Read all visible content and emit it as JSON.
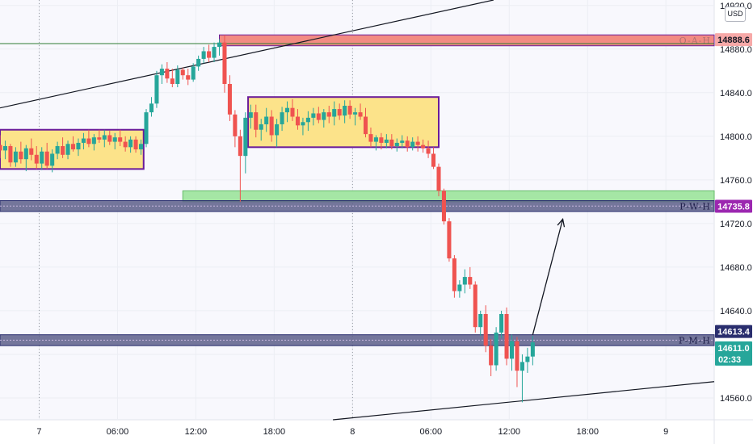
{
  "currency_label": "USD",
  "chart_data": {
    "type": "candlestick",
    "title": "",
    "ylim": [
      14540,
      14925
    ],
    "y_ticks": [
      14560,
      14600,
      14640,
      14680,
      14720,
      14760,
      14800,
      14840,
      14880,
      14920
    ],
    "y_tick_labels": [
      "14560.0",
      "14600.0",
      "14640.0",
      "14680.0",
      "14720.0",
      "14760.0",
      "14800.0",
      "14840.0",
      "14880.0",
      "14920.0"
    ],
    "x_ticks": [
      "7",
      "06:00",
      "12:00",
      "18:00",
      "8",
      "06:00",
      "12:00",
      "18:00",
      "9"
    ],
    "x_tick_hours": [
      0,
      6,
      12,
      18,
      24,
      30,
      36,
      42,
      48
    ],
    "xlim_hours": [
      -3,
      51.7
    ],
    "grid": true,
    "candles": [
      [
        -3.0,
        14792,
        14801,
        14780,
        14787
      ],
      [
        -2.6,
        14787,
        14796,
        14779,
        14791
      ],
      [
        -2.2,
        14791,
        14793,
        14772,
        14776
      ],
      [
        -1.8,
        14776,
        14790,
        14772,
        14786
      ],
      [
        -1.4,
        14786,
        14795,
        14775,
        14779
      ],
      [
        -1.0,
        14779,
        14792,
        14768,
        14789
      ],
      [
        -0.6,
        14789,
        14798,
        14778,
        14783
      ],
      [
        -0.2,
        14783,
        14791,
        14770,
        14775
      ],
      [
        0.2,
        14775,
        14790,
        14769,
        14786
      ],
      [
        0.6,
        14786,
        14794,
        14770,
        14773
      ],
      [
        1.0,
        14773,
        14788,
        14767,
        14784
      ],
      [
        1.4,
        14784,
        14795,
        14779,
        14791
      ],
      [
        1.8,
        14791,
        14799,
        14780,
        14783
      ],
      [
        2.2,
        14783,
        14796,
        14779,
        14793
      ],
      [
        2.6,
        14793,
        14800,
        14786,
        14788
      ],
      [
        3.0,
        14788,
        14798,
        14782,
        14794
      ],
      [
        3.4,
        14794,
        14803,
        14788,
        14798
      ],
      [
        3.8,
        14798,
        14806,
        14790,
        14793
      ],
      [
        4.2,
        14793,
        14802,
        14787,
        14799
      ],
      [
        4.6,
        14799,
        14806,
        14794,
        14797
      ],
      [
        5.0,
        14797,
        14806,
        14790,
        14801
      ],
      [
        5.4,
        14801,
        14805,
        14792,
        14795
      ],
      [
        5.8,
        14795,
        14803,
        14788,
        14799
      ],
      [
        6.2,
        14799,
        14806,
        14791,
        14795
      ],
      [
        6.6,
        14795,
        14800,
        14786,
        14790
      ],
      [
        7.0,
        14790,
        14800,
        14785,
        14797
      ],
      [
        7.4,
        14797,
        14800,
        14785,
        14788
      ],
      [
        7.8,
        14788,
        14797,
        14783,
        14793
      ],
      [
        8.2,
        14793,
        14825,
        14790,
        14822
      ],
      [
        8.6,
        14822,
        14836,
        14818,
        14830
      ],
      [
        9.0,
        14830,
        14860,
        14826,
        14856
      ],
      [
        9.4,
        14856,
        14866,
        14848,
        14862
      ],
      [
        9.8,
        14862,
        14868,
        14849,
        14853
      ],
      [
        10.2,
        14853,
        14862,
        14845,
        14848
      ],
      [
        10.6,
        14848,
        14865,
        14845,
        14861
      ],
      [
        11.0,
        14861,
        14863,
        14852,
        14856
      ],
      [
        11.4,
        14856,
        14862,
        14847,
        14852
      ],
      [
        11.8,
        14852,
        14867,
        14850,
        14864
      ],
      [
        12.2,
        14864,
        14874,
        14860,
        14871
      ],
      [
        12.6,
        14871,
        14882,
        14867,
        14878
      ],
      [
        13.0,
        14878,
        14884,
        14868,
        14872
      ],
      [
        13.4,
        14872,
        14886,
        14868,
        14882
      ],
      [
        13.8,
        14882,
        14889,
        14874,
        14886
      ],
      [
        14.2,
        14886,
        14893,
        14840,
        14848
      ],
      [
        14.6,
        14848,
        14856,
        14814,
        14820
      ],
      [
        15.0,
        14820,
        14824,
        14790,
        14800
      ],
      [
        15.4,
        14800,
        14806,
        14740,
        14782
      ],
      [
        15.8,
        14782,
        14822,
        14766,
        14817
      ],
      [
        16.2,
        14817,
        14829,
        14807,
        14822
      ],
      [
        16.6,
        14822,
        14829,
        14799,
        14806
      ],
      [
        17.0,
        14806,
        14816,
        14796,
        14811
      ],
      [
        17.4,
        14811,
        14826,
        14804,
        14818
      ],
      [
        17.8,
        14818,
        14824,
        14795,
        14801
      ],
      [
        18.2,
        14801,
        14816,
        14790,
        14811
      ],
      [
        18.6,
        14811,
        14827,
        14805,
        14822
      ],
      [
        19.0,
        14822,
        14832,
        14813,
        14826
      ],
      [
        19.4,
        14826,
        14834,
        14814,
        14818
      ],
      [
        19.8,
        14818,
        14825,
        14806,
        14810
      ],
      [
        20.2,
        14810,
        14817,
        14801,
        14813
      ],
      [
        20.6,
        14813,
        14823,
        14805,
        14817
      ],
      [
        21.0,
        14817,
        14826,
        14810,
        14821
      ],
      [
        21.4,
        14821,
        14827,
        14812,
        14815
      ],
      [
        21.8,
        14815,
        14825,
        14808,
        14822
      ],
      [
        22.2,
        14822,
        14828,
        14812,
        14818
      ],
      [
        22.6,
        14818,
        14832,
        14810,
        14825
      ],
      [
        23.0,
        14825,
        14830,
        14815,
        14819
      ],
      [
        23.4,
        14819,
        14833,
        14812,
        14828
      ],
      [
        23.8,
        14828,
        14833,
        14816,
        14820
      ],
      [
        24.2,
        14820,
        14826,
        14810,
        14822
      ],
      [
        24.6,
        14822,
        14830,
        14815,
        14818
      ],
      [
        25.0,
        14818,
        14826,
        14799,
        14802
      ],
      [
        25.4,
        14802,
        14808,
        14790,
        14795
      ],
      [
        25.8,
        14795,
        14801,
        14787,
        14799
      ],
      [
        26.2,
        14799,
        14803,
        14788,
        14794
      ],
      [
        26.6,
        14794,
        14802,
        14789,
        14797
      ],
      [
        27.0,
        14797,
        14802,
        14788,
        14791
      ],
      [
        27.4,
        14791,
        14798,
        14786,
        14794
      ],
      [
        27.8,
        14794,
        14801,
        14789,
        14796
      ],
      [
        28.2,
        14796,
        14800,
        14786,
        14790
      ],
      [
        28.6,
        14790,
        14799,
        14787,
        14795
      ],
      [
        29.0,
        14795,
        14800,
        14786,
        14792
      ],
      [
        29.4,
        14792,
        14797,
        14785,
        14789
      ],
      [
        29.8,
        14789,
        14796,
        14780,
        14784
      ],
      [
        30.2,
        14784,
        14790,
        14770,
        14772
      ],
      [
        30.6,
        14772,
        14775,
        14745,
        14750
      ],
      [
        31.0,
        14750,
        14752,
        14719,
        14722
      ],
      [
        31.4,
        14722,
        14725,
        14685,
        14688
      ],
      [
        31.8,
        14688,
        14691,
        14652,
        14658
      ],
      [
        32.2,
        14658,
        14668,
        14652,
        14664
      ],
      [
        32.6,
        14664,
        14678,
        14656,
        14671
      ],
      [
        33.0,
        14671,
        14680,
        14660,
        14664
      ],
      [
        33.4,
        14664,
        14667,
        14620,
        14625
      ],
      [
        33.8,
        14625,
        14640,
        14617,
        14637
      ],
      [
        34.2,
        14637,
        14645,
        14602,
        14608
      ],
      [
        34.6,
        14608,
        14614,
        14580,
        14590
      ],
      [
        35.0,
        14590,
        14625,
        14585,
        14620
      ],
      [
        35.4,
        14620,
        14640,
        14615,
        14637
      ],
      [
        35.8,
        14637,
        14643,
        14590,
        14596
      ],
      [
        36.2,
        14596,
        14618,
        14585,
        14612
      ],
      [
        36.6,
        14612,
        14616,
        14570,
        14585
      ],
      [
        37.0,
        14585,
        14600,
        14556,
        14593
      ],
      [
        37.4,
        14593,
        14606,
        14583,
        14598
      ],
      [
        37.8,
        14598,
        14617,
        14590,
        14611
      ]
    ],
    "zones": [
      {
        "name": "resistance-zone",
        "label": "O-A-H",
        "price": 14888.6,
        "y_top": 14893,
        "y_bottom": 14883,
        "x_start_hours": 13.8
      },
      {
        "name": "consolidation-zone-1",
        "label": "",
        "y_top": 14806,
        "y_bottom": 14770,
        "x_start_hours": -3.0,
        "x_end_hours": 8.0
      },
      {
        "name": "consolidation-zone-2",
        "label": "",
        "y_top": 14836,
        "y_bottom": 14790,
        "x_start_hours": 16.0,
        "x_end_hours": 30.6
      },
      {
        "name": "support-zone-green",
        "label": "",
        "y_top": 14750,
        "y_bottom": 14740,
        "x_start_hours": 11.0
      },
      {
        "name": "prior-week-high-zone",
        "label": "P-W-H",
        "price": 14735.8,
        "y_top": 14741,
        "y_bottom": 14731,
        "x_start_hours": -3.0
      },
      {
        "name": "prior-month-high-zone",
        "label": "P-M-H",
        "price": 14613.4,
        "y_top": 14618,
        "y_bottom": 14608,
        "x_start_hours": -3.0
      }
    ],
    "horizontal_lines": [
      {
        "name": "green-level-line",
        "price": 14885
      }
    ],
    "trendlines": [
      {
        "name": "upper-channel-line",
        "from": [
          -3.0,
          14826
        ],
        "to": [
          34.8,
          14925
        ]
      },
      {
        "name": "lower-channel-line",
        "from": [
          22.5,
          14540
        ],
        "to": [
          51.7,
          14575
        ]
      }
    ],
    "arrow": {
      "from": [
        37.8,
        14618
      ],
      "to": [
        40.1,
        14724
      ]
    },
    "session_lines_hours": [
      0,
      24
    ],
    "price_tags": [
      {
        "name": "oah-price-tag",
        "text": "14888.6",
        "price": 14888.6,
        "color": "#f7a9a8",
        "text_color": "#131722"
      },
      {
        "name": "pwh-price-tag",
        "text": "14735.8",
        "price": 14735.8,
        "color": "#9c27b0",
        "text_color": "#ffffff"
      },
      {
        "name": "pmh-price-tag",
        "text": "14613.4",
        "price": 14621.0,
        "color": "#2a2e6e",
        "text_color": "#ffffff"
      },
      {
        "name": "last-price-tag",
        "text": "14611.0",
        "countdown": "02:33",
        "price": 14606.0,
        "color": "#26a69a",
        "text_color": "#ffffff"
      }
    ],
    "colors": {
      "up": "#26a69a",
      "down": "#ef5350",
      "zone_yellow": "#fce38a",
      "zone_border": "#6a1b9a",
      "zone_red": "#f28b82",
      "zone_green": "#a5e6a5",
      "zone_dark": "#5d5f8a",
      "background": "#f8f8fd"
    }
  }
}
